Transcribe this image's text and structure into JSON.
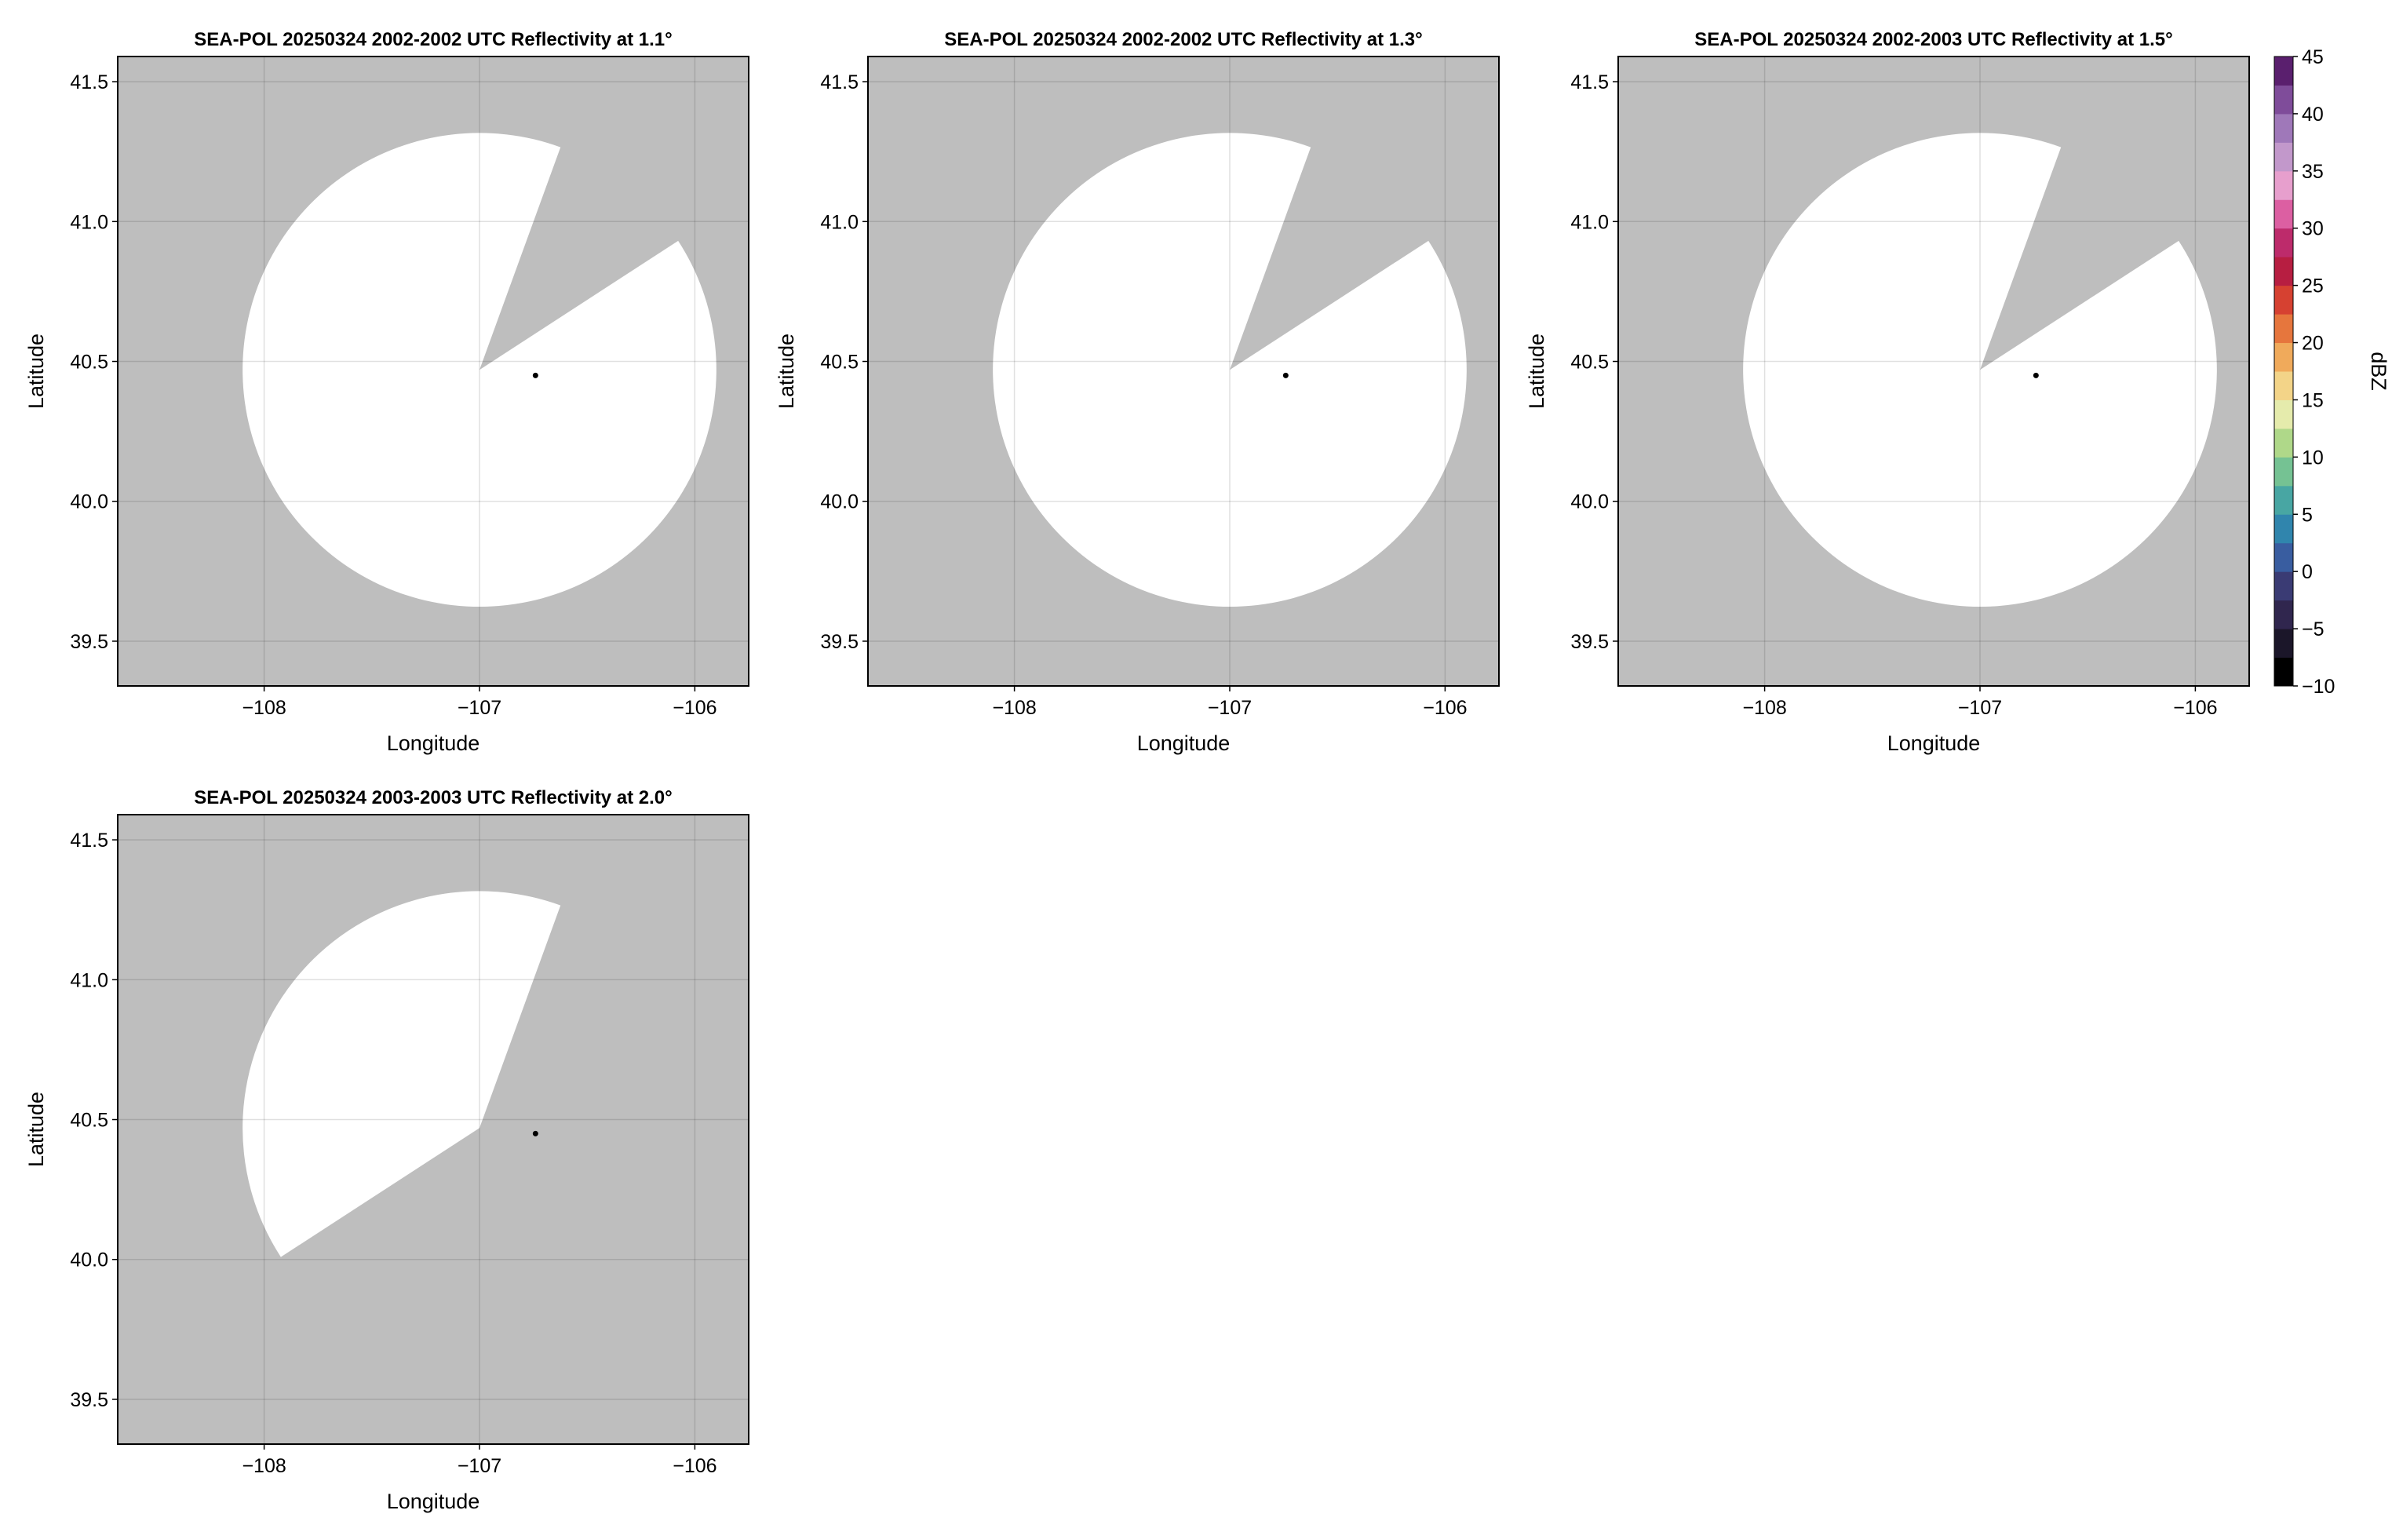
{
  "chart_data": [
    {
      "type": "heatmap",
      "title": "SEA-POL 20250324 2002-2002 UTC Reflectivity at 1.1°",
      "xlabel": "Longitude",
      "ylabel": "Latitude",
      "xlim": [
        -108.68,
        -105.75
      ],
      "ylim": [
        39.34,
        41.59
      ],
      "xticks": [
        -108,
        -107,
        -106
      ],
      "xtick_labels": [
        "−108",
        "−107",
        "−106"
      ],
      "yticks": [
        39.5,
        40.0,
        40.5,
        41.0,
        41.5
      ],
      "ytick_labels": [
        "39.5",
        "40.0",
        "40.5",
        "41.0",
        "41.5"
      ],
      "grid": true,
      "background_color": "#bebebe",
      "scan_color": "#ffffff",
      "scan_center": [
        -107.0,
        40.47
      ],
      "scan_radius_deg": 1.1,
      "blocked_sector_azimuth_deg": [
        20,
        57
      ],
      "radar_marker": [
        -106.74,
        40.45
      ]
    },
    {
      "type": "heatmap",
      "title": "SEA-POL 20250324 2002-2002 UTC Reflectivity at 1.3°",
      "xlabel": "Longitude",
      "ylabel": "Latitude",
      "xlim": [
        -108.68,
        -105.75
      ],
      "ylim": [
        39.34,
        41.59
      ],
      "xticks": [
        -108,
        -107,
        -106
      ],
      "xtick_labels": [
        "−108",
        "−107",
        "−106"
      ],
      "yticks": [
        39.5,
        40.0,
        40.5,
        41.0,
        41.5
      ],
      "ytick_labels": [
        "39.5",
        "40.0",
        "40.5",
        "41.0",
        "41.5"
      ],
      "grid": true,
      "background_color": "#bebebe",
      "scan_color": "#ffffff",
      "scan_center": [
        -107.0,
        40.47
      ],
      "scan_radius_deg": 1.1,
      "blocked_sector_azimuth_deg": [
        20,
        57
      ],
      "radar_marker": [
        -106.74,
        40.45
      ]
    },
    {
      "type": "heatmap",
      "title": "SEA-POL 20250324 2002-2003 UTC Reflectivity at 1.5°",
      "xlabel": "Longitude",
      "ylabel": "Latitude",
      "xlim": [
        -108.68,
        -105.75
      ],
      "ylim": [
        39.34,
        41.59
      ],
      "xticks": [
        -108,
        -107,
        -106
      ],
      "xtick_labels": [
        "−108",
        "−107",
        "−106"
      ],
      "yticks": [
        39.5,
        40.0,
        40.5,
        41.0,
        41.5
      ],
      "ytick_labels": [
        "39.5",
        "40.0",
        "40.5",
        "41.0",
        "41.5"
      ],
      "grid": true,
      "background_color": "#bebebe",
      "scan_color": "#ffffff",
      "scan_center": [
        -107.0,
        40.47
      ],
      "scan_radius_deg": 1.1,
      "blocked_sector_azimuth_deg": [
        20,
        57
      ],
      "radar_marker": [
        -106.74,
        40.45
      ]
    },
    {
      "type": "heatmap",
      "title": "SEA-POL 20250324 2003-2003 UTC Reflectivity at 2.0°",
      "xlabel": "Longitude",
      "ylabel": "Latitude",
      "xlim": [
        -108.68,
        -105.75
      ],
      "ylim": [
        39.34,
        41.59
      ],
      "xticks": [
        -108,
        -107,
        -106
      ],
      "xtick_labels": [
        "−108",
        "−107",
        "−106"
      ],
      "yticks": [
        39.5,
        40.0,
        40.5,
        41.0,
        41.5
      ],
      "ytick_labels": [
        "39.5",
        "40.0",
        "40.5",
        "41.0",
        "41.5"
      ],
      "grid": true,
      "background_color": "#bebebe",
      "scan_color": "#ffffff",
      "scan_center": [
        -107.0,
        40.47
      ],
      "scan_radius_deg": 1.1,
      "scan_sector_azimuth_deg": [
        237,
        380
      ],
      "radar_marker": [
        -106.74,
        40.45
      ]
    }
  ],
  "colorbar": {
    "label": "dBZ",
    "range": [
      -10,
      45
    ],
    "step": 2.5,
    "ticks": [
      -10,
      -5,
      0,
      5,
      10,
      15,
      20,
      25,
      30,
      35,
      40,
      45
    ],
    "tick_labels": [
      "−10",
      "−5",
      "0",
      "5",
      "10",
      "15",
      "20",
      "25",
      "30",
      "35",
      "40",
      "45"
    ],
    "colormap_stops": [
      "#000000",
      "#241d36",
      "#3a2f63",
      "#3a5a9f",
      "#2e8fb0",
      "#5cb89a",
      "#a8d685",
      "#efefb3",
      "#f5c46d",
      "#e9803f",
      "#d43a2f",
      "#a8104a",
      "#d94f97",
      "#e8a3d0",
      "#b394c9",
      "#8a5aa8",
      "#5a1f6e"
    ]
  }
}
